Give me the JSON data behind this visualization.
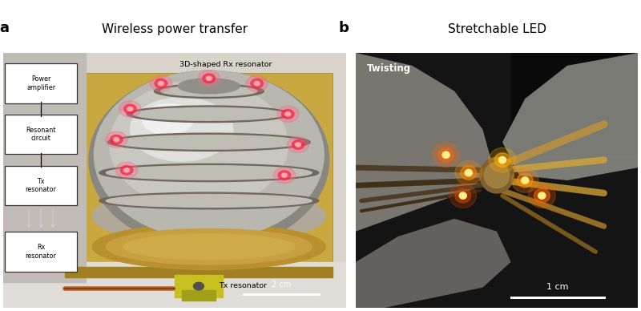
{
  "fig_width": 8.0,
  "fig_height": 3.88,
  "dpi": 100,
  "bg_color": "#ffffff",
  "panel_a": {
    "label": "a",
    "title": "Wireless power transfer",
    "label_fontsize": 13,
    "title_fontsize": 11,
    "annotation_3d": "3D-shaped Rx resonator",
    "annotation_tx": "Tx resonator",
    "scalebar_text": "2 cm",
    "box_labels": [
      "Power\namplifier",
      "Resonant\ncircuit",
      "Tx\nresonator",
      "Rx\nresonator"
    ]
  },
  "panel_b": {
    "label": "b",
    "title": "Stretchable LED",
    "label_fontsize": 13,
    "title_fontsize": 11,
    "annotation_twist": "Twisting",
    "scalebar_text": "1 cm"
  }
}
